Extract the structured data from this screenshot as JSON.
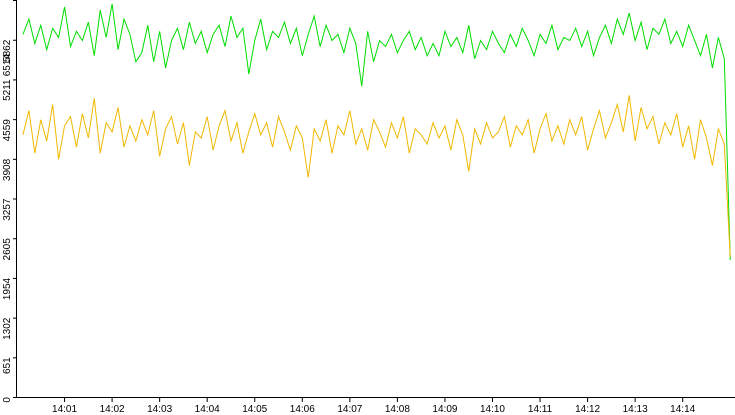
{
  "chart_data": {
    "type": "line",
    "x": [
      840.125,
      840.25,
      840.375,
      840.5,
      840.625,
      840.75,
      840.875,
      841,
      841.125,
      841.25,
      841.375,
      841.5,
      841.625,
      841.75,
      841.875,
      842,
      842.125,
      842.25,
      842.375,
      842.5,
      842.625,
      842.75,
      842.875,
      843,
      843.125,
      843.25,
      843.375,
      843.5,
      843.625,
      843.75,
      843.875,
      844,
      844.125,
      844.25,
      844.375,
      844.5,
      844.625,
      844.75,
      844.875,
      845,
      845.125,
      845.25,
      845.375,
      845.5,
      845.625,
      845.75,
      845.875,
      846,
      846.125,
      846.25,
      846.375,
      846.5,
      846.625,
      846.75,
      846.875,
      847,
      847.125,
      847.25,
      847.375,
      847.5,
      847.625,
      847.75,
      847.875,
      848,
      848.125,
      848.25,
      848.375,
      848.5,
      848.625,
      848.75,
      848.875,
      849,
      849.125,
      849.25,
      849.375,
      849.5,
      849.625,
      849.75,
      849.875,
      850,
      850.125,
      850.25,
      850.375,
      850.5,
      850.625,
      850.75,
      850.875,
      851,
      851.125,
      851.25,
      851.375,
      851.5,
      851.625,
      851.75,
      851.875,
      852,
      852.125,
      852.25,
      852.375,
      852.5,
      852.625,
      852.75,
      852.875,
      853,
      853.125,
      853.25,
      853.375,
      853.5,
      853.625,
      853.75,
      853.875,
      854,
      854.125,
      854.25,
      854.375,
      854.5,
      854.625,
      854.75,
      854.875,
      855
    ],
    "series": [
      {
        "color": "#00dd00",
        "values": [
          5950,
          6200,
          5800,
          6100,
          5700,
          6050,
          5900,
          6400,
          5750,
          6000,
          5850,
          6150,
          5600,
          6350,
          5900,
          6450,
          5700,
          6200,
          5950,
          5500,
          5650,
          6100,
          5500,
          6000,
          5400,
          5850,
          6050,
          5700,
          6150,
          5800,
          6000,
          5650,
          5950,
          6100,
          5750,
          6250,
          5900,
          6050,
          5300,
          5850,
          6200,
          5700,
          6000,
          5900,
          6150,
          5800,
          6050,
          5600,
          5950,
          6250,
          5750,
          6100,
          5850,
          5950,
          5650,
          6050,
          5800,
          5100,
          6000,
          5500,
          5850,
          5750,
          5950,
          5650,
          5850,
          6000,
          5700,
          5900,
          5600,
          5800,
          5600,
          6000,
          5750,
          5900,
          5650,
          6100,
          5550,
          5850,
          5700,
          6000,
          5800,
          5650,
          5950,
          5750,
          6050,
          5850,
          5600,
          5950,
          5800,
          6100,
          5700,
          5900,
          5850,
          6050,
          5750,
          6000,
          5600,
          5900,
          6100,
          5800,
          6200,
          5950,
          6300,
          5850,
          6150,
          5700,
          6050,
          5950,
          6200,
          5800,
          6000,
          5750,
          6100,
          5850,
          5600,
          5950,
          5400,
          5900,
          5550,
          2250
        ]
      },
      {
        "color": "#f0b800",
        "values": [
          4300,
          4700,
          4000,
          4550,
          4200,
          4800,
          3900,
          4450,
          4600,
          4100,
          4650,
          4250,
          4900,
          4000,
          4500,
          4350,
          4750,
          4100,
          4450,
          4200,
          4550,
          4300,
          4700,
          3950,
          4400,
          4600,
          4150,
          4500,
          3800,
          4350,
          4250,
          4600,
          4050,
          4450,
          4700,
          4200,
          4500,
          4000,
          4350,
          4650,
          4300,
          4500,
          4100,
          4600,
          4350,
          4050,
          4450,
          4250,
          3600,
          4400,
          4200,
          4550,
          4000,
          4450,
          4300,
          4700,
          4150,
          4400,
          4050,
          4550,
          4350,
          4100,
          4500,
          4250,
          4600,
          4000,
          4400,
          4300,
          4150,
          4500,
          4250,
          4450,
          4050,
          4550,
          4300,
          3700,
          4400,
          4150,
          4500,
          4250,
          4350,
          4600,
          4100,
          4450,
          4300,
          4550,
          4000,
          4400,
          4650,
          4200,
          4450,
          4150,
          4550,
          4300,
          4600,
          4050,
          4400,
          4700,
          4250,
          4500,
          4800,
          4350,
          4950,
          4200,
          4750,
          4400,
          4600,
          4150,
          4500,
          4300,
          4650,
          4100,
          4450,
          3900,
          4550,
          4250,
          3800,
          4400,
          4150,
          2300
        ]
      }
    ],
    "xlim": [
      840,
      855.1
    ],
    "xticks": [
      {
        "value": 841,
        "label": "14:01"
      },
      {
        "value": 842,
        "label": "14:02"
      },
      {
        "value": 843,
        "label": "14:03"
      },
      {
        "value": 844,
        "label": "14:04"
      },
      {
        "value": 845,
        "label": "14:05"
      },
      {
        "value": 846,
        "label": "14:06"
      },
      {
        "value": 847,
        "label": "14:07"
      },
      {
        "value": 848,
        "label": "14:08"
      },
      {
        "value": 849,
        "label": "14:09"
      },
      {
        "value": 850,
        "label": "14:10"
      },
      {
        "value": 851,
        "label": "14:11"
      },
      {
        "value": 852,
        "label": "14:12"
      },
      {
        "value": 853,
        "label": "14:13"
      },
      {
        "value": 854,
        "label": "14:14"
      }
    ],
    "ylim": [
      0,
      6514
    ],
    "yticks": [
      0,
      651,
      1302,
      1954,
      2605,
      3257,
      3908,
      4559,
      5211,
      5862,
      6514
    ]
  }
}
